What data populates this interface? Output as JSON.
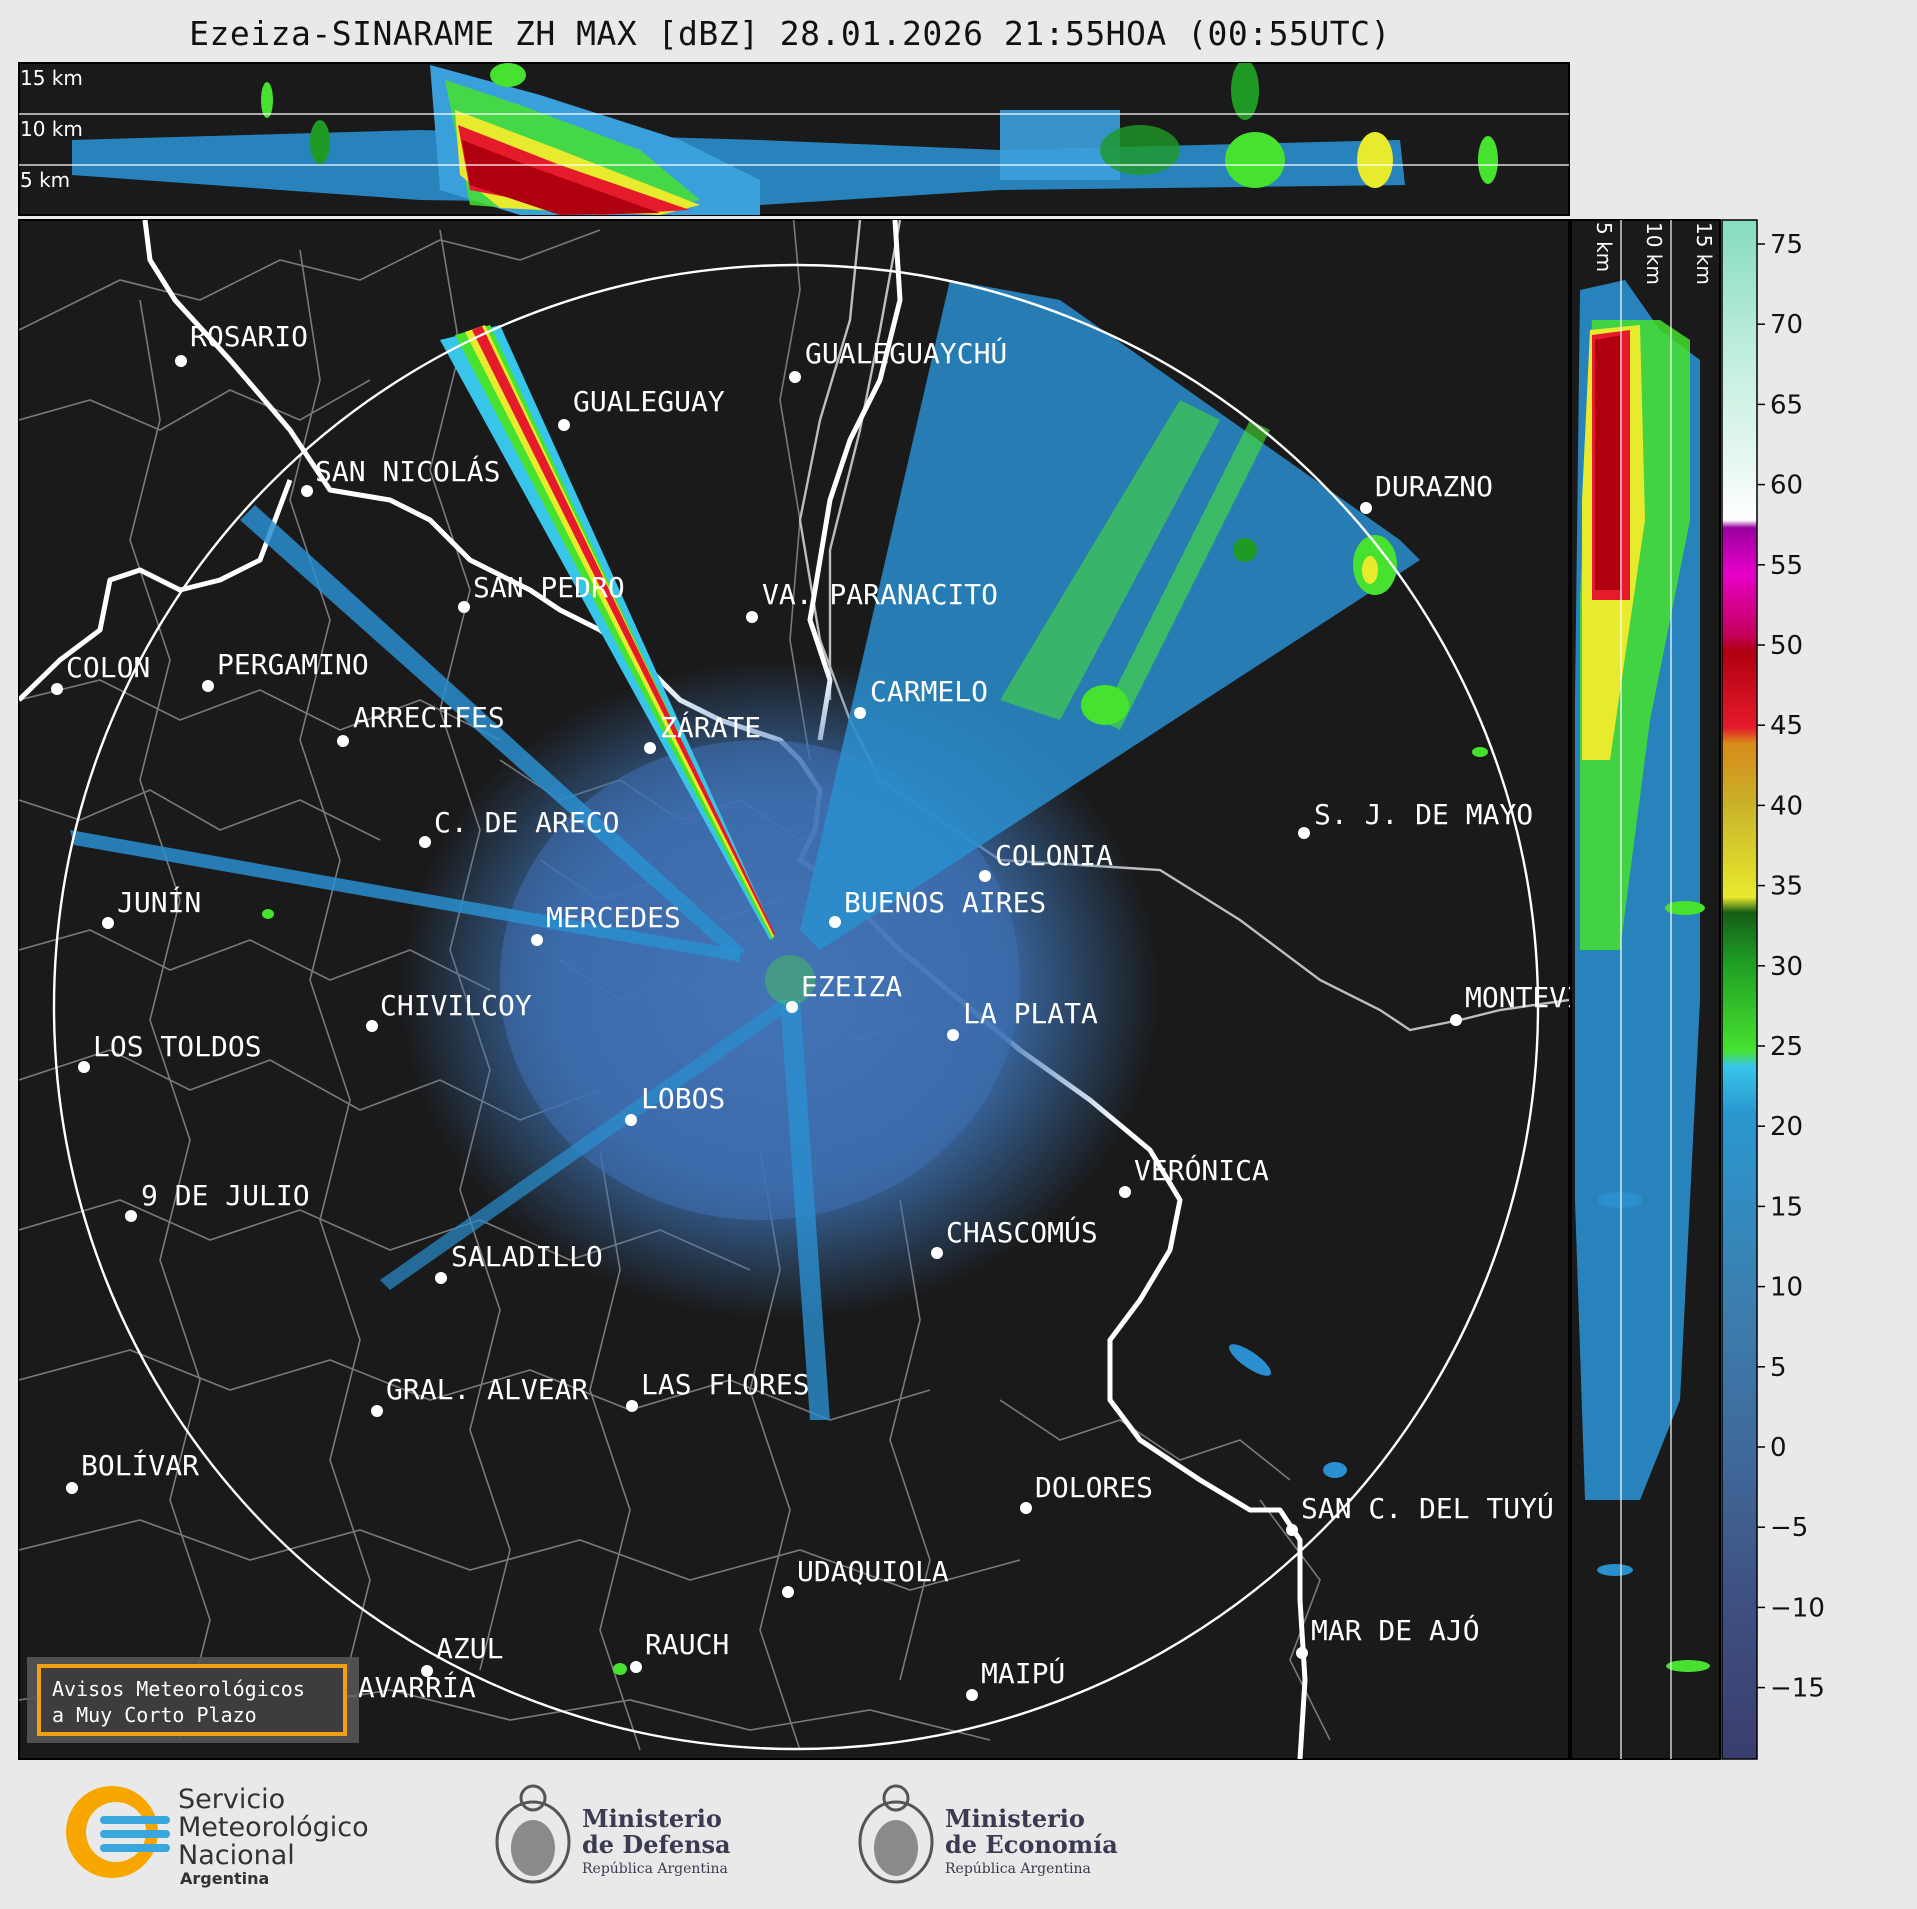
{
  "title": "Ezeiza-SINARAME ZH MAX [dBZ] 28.01.2026 21:55HOA (00:55UTC)",
  "top_section": {
    "height_labels": [
      "15 km",
      "10 km",
      "5 km"
    ]
  },
  "side_section": {
    "height_labels": [
      "5 km",
      "10 km",
      "15 km"
    ]
  },
  "colorbar": {
    "unit": "dBZ",
    "tick_labels": [
      "75",
      "70",
      "65",
      "60",
      "55",
      "50",
      "45",
      "40",
      "35",
      "30",
      "25",
      "20",
      "15",
      "10",
      "5",
      "0",
      "−5",
      "−10",
      "−15"
    ],
    "colors": {
      "stops_low_to_high": [
        "#3a3e6e",
        "#3f4f82",
        "#3f6a9a",
        "#3b7fb0",
        "#2a97cf",
        "#38c5ea",
        "#47e22f",
        "#1e9a24",
        "#155d16",
        "#e8ea2e",
        "#c9b22a",
        "#d88a1a",
        "#e51b2c",
        "#b00010",
        "#c4005a",
        "#e600c8",
        "#9a009e",
        "#ffffff",
        "#c8f0e0",
        "#86dcc0"
      ]
    }
  },
  "map": {
    "cities": [
      {
        "id": "rosario",
        "name": "ROSARIO"
      },
      {
        "id": "gualeguaychu",
        "name": "GUALEGUAYCHÚ"
      },
      {
        "id": "gualeguay",
        "name": "GUALEGUAY"
      },
      {
        "id": "san-nicolas",
        "name": "SAN NICOLÁS"
      },
      {
        "id": "durazno",
        "name": "DURAZNO"
      },
      {
        "id": "san-pedro",
        "name": "SAN PEDRO"
      },
      {
        "id": "villa-paranacito",
        "name": "VA. PARANACITO"
      },
      {
        "id": "colon",
        "name": "COLON"
      },
      {
        "id": "pergamino",
        "name": "PERGAMINO"
      },
      {
        "id": "carmelo",
        "name": "CARMELO"
      },
      {
        "id": "arrecifes",
        "name": "ARRECIFES"
      },
      {
        "id": "zarate",
        "name": "ZÁRATE"
      },
      {
        "id": "sj-de-mayo",
        "name": "S. J. DE MAYO"
      },
      {
        "id": "c-de-areco",
        "name": "C. DE ARECO"
      },
      {
        "id": "colonia",
        "name": "COLONIA"
      },
      {
        "id": "junin",
        "name": "JUNÍN"
      },
      {
        "id": "buenos-aires",
        "name": "BUENOS AIRES"
      },
      {
        "id": "mercedes",
        "name": "MERCEDES"
      },
      {
        "id": "ezeiza",
        "name": "EZEIZA"
      },
      {
        "id": "montevideo",
        "name": "MONTEVIDEO"
      },
      {
        "id": "chivilcoy",
        "name": "CHIVILCOY"
      },
      {
        "id": "la-plata",
        "name": "LA PLATA"
      },
      {
        "id": "los-toldos",
        "name": "LOS TOLDOS"
      },
      {
        "id": "lobos",
        "name": "LOBOS"
      },
      {
        "id": "veronica",
        "name": "VERÓNICA"
      },
      {
        "id": "9-de-julio",
        "name": "9 DE JULIO"
      },
      {
        "id": "chascomus",
        "name": "CHASCOMÚS"
      },
      {
        "id": "saladillo",
        "name": "SALADILLO"
      },
      {
        "id": "gral-alvear",
        "name": "GRAL. ALVEAR"
      },
      {
        "id": "las-flores",
        "name": "LAS FLORES"
      },
      {
        "id": "bolivar",
        "name": "BOLÍVAR"
      },
      {
        "id": "dolores",
        "name": "DOLORES"
      },
      {
        "id": "san-c-del-tuyu",
        "name": "SAN C. DEL TUYÚ"
      },
      {
        "id": "udaquiola",
        "name": "UDAQUIOLA"
      },
      {
        "id": "mar-de-ajo",
        "name": "MAR DE AJÓ"
      },
      {
        "id": "rauch",
        "name": "RAUCH"
      },
      {
        "id": "azul",
        "name": "AZUL"
      },
      {
        "id": "olavarria",
        "name": "OLAVARRÍA"
      },
      {
        "id": "maipu",
        "name": "MAIPÚ"
      }
    ],
    "warning_box": {
      "line1": "Avisos Meteorológicos",
      "line2": "a Muy Corto Plazo",
      "border_color": "#f0a010"
    }
  },
  "footer": {
    "smn": {
      "line1": "Servicio",
      "line2": "Meteorológico",
      "line3": "Nacional",
      "line4": "Argentina"
    },
    "defensa": {
      "line1": "Ministerio",
      "line2": "de Defensa",
      "line3": "República Argentina"
    },
    "economia": {
      "line1": "Ministerio",
      "line2": "de Economía",
      "line3": "República Argentina"
    },
    "colors": {
      "smn_orange": "#f7a600",
      "smn_blue": "#3aa6de",
      "ministry_text": "#3a3a52"
    }
  }
}
